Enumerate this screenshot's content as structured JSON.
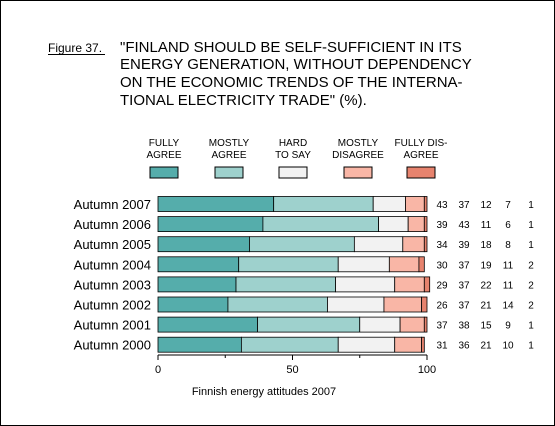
{
  "figure_label": "Figure 37.",
  "title_lines": [
    "\"FINLAND SHOULD BE SELF-SUFFICIENT IN ITS",
    "ENERGY GENERATION, WITHOUT DEPENDENCY",
    "ON THE ECONOMIC TRENDS OF THE INTERNA-",
    "TIONAL ELECTRICITY TRADE\" (%)."
  ],
  "footer": "Finnish energy attitudes 2007",
  "colors": {
    "fully_agree": "#55ADAB",
    "mostly_agree": "#9ED1CD",
    "hard_to_say": "#F2F2F2",
    "mostly_disagree": "#F9B6A6",
    "fully_disagree": "#E7836E",
    "bar_stroke": "#000000",
    "frame": "#000000",
    "background": "#FFFFFF"
  },
  "chart_data": {
    "type": "bar",
    "orientation": "horizontal",
    "stacked": true,
    "categories": [
      "Autumn 2007",
      "Autumn 2006",
      "Autumn 2005",
      "Autumn 2004",
      "Autumn 2003",
      "Autumn 2002",
      "Autumn 2001",
      "Autumn 2000"
    ],
    "series": [
      {
        "name": "FULLY AGREE",
        "legend_lines": [
          "FULLY",
          "AGREE"
        ],
        "color_key": "fully_agree",
        "values": [
          43,
          39,
          34,
          30,
          29,
          26,
          37,
          31
        ]
      },
      {
        "name": "MOSTLY AGREE",
        "legend_lines": [
          "MOSTLY",
          "AGREE"
        ],
        "color_key": "mostly_agree",
        "values": [
          37,
          43,
          39,
          37,
          37,
          37,
          38,
          36
        ]
      },
      {
        "name": "HARD TO SAY",
        "legend_lines": [
          "HARD",
          "TO SAY"
        ],
        "color_key": "hard_to_say",
        "values": [
          12,
          11,
          18,
          19,
          22,
          21,
          15,
          21
        ]
      },
      {
        "name": "MOSTLY DISAGREE",
        "legend_lines": [
          "MOSTLY",
          "DISAGREE"
        ],
        "color_key": "mostly_disagree",
        "values": [
          7,
          6,
          8,
          11,
          11,
          14,
          9,
          10
        ]
      },
      {
        "name": "FULLY DIS-AGREE",
        "legend_lines": [
          "FULLY DIS-",
          "AGREE"
        ],
        "color_key": "fully_disagree",
        "values": [
          1,
          1,
          1,
          2,
          2,
          2,
          1,
          1
        ]
      }
    ],
    "xlim": [
      0,
      100
    ],
    "xticks": [
      0,
      50,
      100
    ],
    "xtick_labels": [
      "0",
      "25",
      "50",
      "75",
      "100"
    ],
    "xtick_values": [
      0,
      25,
      50,
      75,
      100
    ],
    "grid": false,
    "legend_placement": "top",
    "data_labels_placement": "right"
  }
}
